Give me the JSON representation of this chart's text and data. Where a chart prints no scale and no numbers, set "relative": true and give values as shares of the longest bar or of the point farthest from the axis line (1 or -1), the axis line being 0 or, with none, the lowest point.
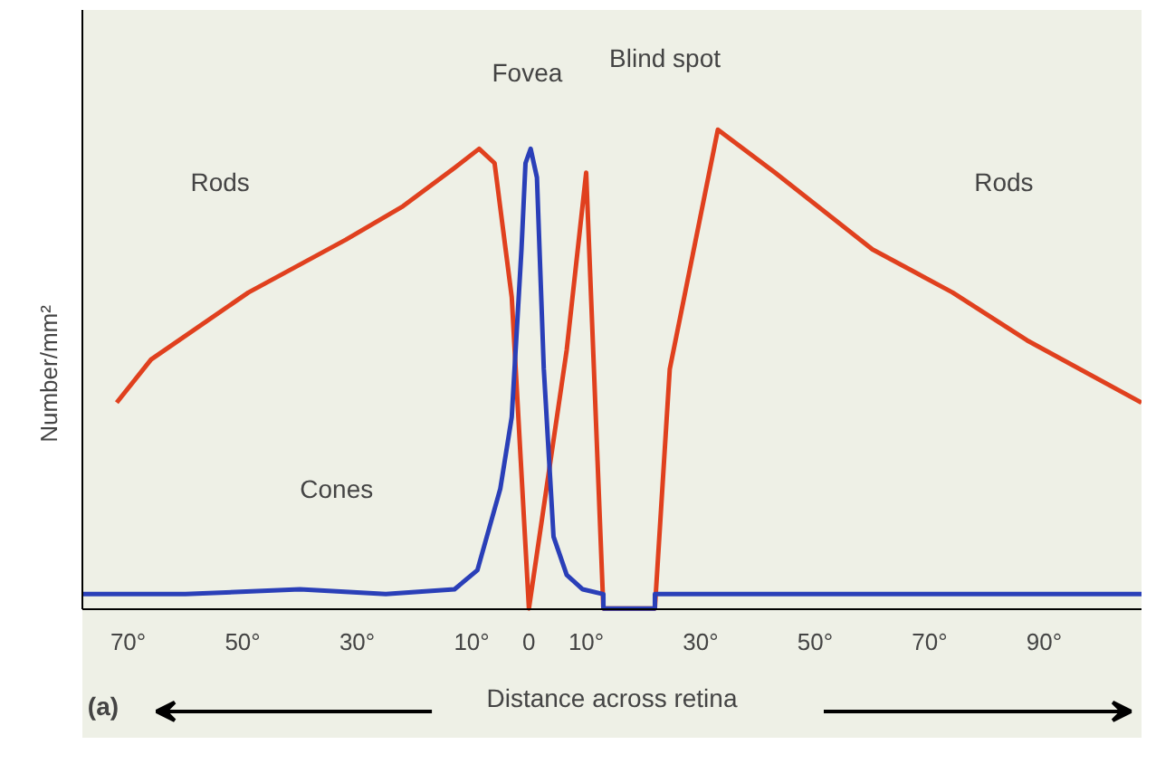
{
  "chart_data": {
    "type": "line",
    "relative": true,
    "xlabel": "Distance across retina",
    "ylabel": "Number/mm²",
    "xlim": [
      -78,
      107
    ],
    "xticks": [
      {
        "value": -70,
        "label": "70°"
      },
      {
        "value": -50,
        "label": "50°"
      },
      {
        "value": -30,
        "label": "30°"
      },
      {
        "value": -10,
        "label": "10°"
      },
      0,
      {
        "value": 10,
        "label": "10°"
      },
      {
        "value": 30,
        "label": "30°"
      },
      {
        "value": 50,
        "label": "50°"
      },
      {
        "value": 70,
        "label": "70°"
      },
      {
        "value": 90,
        "label": "90°"
      }
    ],
    "series": [
      {
        "color": "#e0401e",
        "x": [
          -72,
          -66,
          -49,
          -32,
          -22,
          -13,
          -8.7,
          -6,
          -3,
          0,
          6.6,
          10,
          13,
          22,
          24.6,
          33,
          43,
          60,
          74,
          87,
          107
        ],
        "values": [
          0.43,
          0.52,
          0.66,
          0.77,
          0.84,
          0.92,
          0.96,
          0.93,
          0.65,
          0,
          0.54,
          0.91,
          0,
          0,
          0.5,
          1.0,
          0.91,
          0.75,
          0.66,
          0.56,
          0.43
        ]
      },
      {
        "color": "#2a3fb8",
        "x": [
          -78,
          -60,
          -40,
          -25,
          -13,
          -9,
          -5,
          -3,
          -1.3,
          -0.6,
          0.3,
          1.4,
          2.6,
          4.3,
          6.6,
          9.4,
          13,
          13.01,
          22,
          22.01,
          50,
          80,
          107
        ],
        "values": [
          0.03,
          0.03,
          0.04,
          0.03,
          0.04,
          0.08,
          0.25,
          0.4,
          0.75,
          0.93,
          0.96,
          0.9,
          0.5,
          0.15,
          0.07,
          0.04,
          0.03,
          0,
          0,
          0.03,
          0.03,
          0.03,
          0.03
        ]
      }
    ],
    "annotations": [
      "Fovea",
      "Blind spot",
      "Rods",
      "Rods",
      "Cones",
      "(a)"
    ],
    "grid": false,
    "marker": "none",
    "line_style": "solid"
  }
}
